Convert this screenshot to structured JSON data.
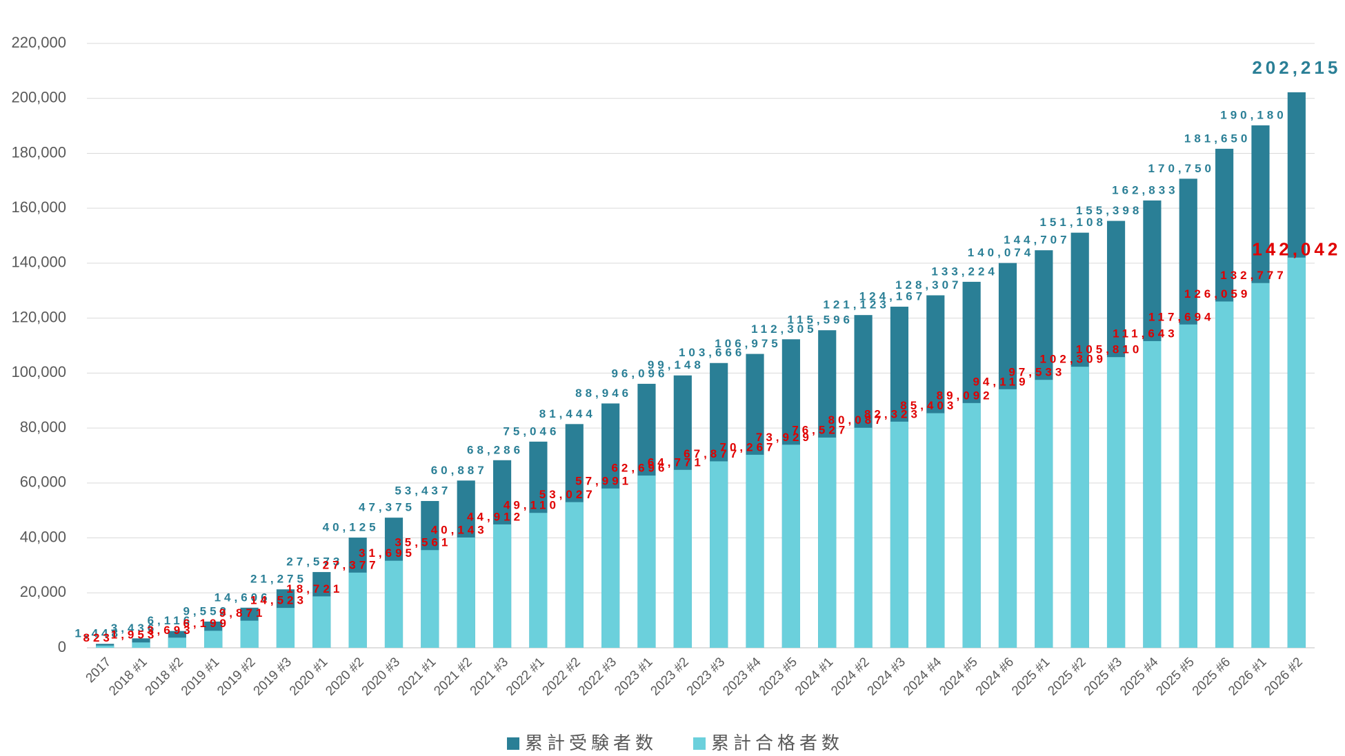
{
  "chart_data": {
    "type": "bar",
    "overlay": true,
    "categories": [
      "2017",
      "2018 #1",
      "2018 #2",
      "2019 #1",
      "2019 #2",
      "2019 #3",
      "2020 #1",
      "2020 #2",
      "2020 #3",
      "2021 #1",
      "2021 #2",
      "2021 #3",
      "2022 #1",
      "2022 #2",
      "2022 #3",
      "2023 #1",
      "2023 #2",
      "2023 #3",
      "2023 #4",
      "2023 #5",
      "2024 #1",
      "2024 #2",
      "2024 #3",
      "2024 #4",
      "2024 #5",
      "2024 #6",
      "2025 #1",
      "2025 #2",
      "2025 #3",
      "2025 #4",
      "2025 #5",
      "2025 #6",
      "2026 #1",
      "2026 #2"
    ],
    "series": [
      {
        "name": "累計受験者数",
        "color": "#2a7f96",
        "label_color": "#2a7f96",
        "values": [
          1448,
          3436,
          6116,
          9552,
          14606,
          21275,
          27573,
          40125,
          47375,
          53437,
          60887,
          68286,
          75046,
          81444,
          88946,
          96096,
          99148,
          103666,
          106975,
          112305,
          115596,
          121123,
          124167,
          128307,
          133224,
          140074,
          144707,
          151108,
          155398,
          162833,
          170750,
          181650,
          190180,
          202215
        ],
        "value_labels": [
          "1,448",
          "3,436",
          "6,116",
          "9,552",
          "14,606",
          "21,275",
          "27,573",
          "40,125",
          "47,375",
          "53,437",
          "60,887",
          "68,286",
          "75,046",
          "81,444",
          "88,946",
          "96,096",
          "99,148",
          "103,666",
          "106,975",
          "112,305",
          "115,596",
          "121,123",
          "124,167",
          "128,307",
          "133,224",
          "140,074",
          "144,707",
          "151,108",
          "155,398",
          "162,833",
          "170,750",
          "181,650",
          "190,180",
          "202,215"
        ]
      },
      {
        "name": "累計合格者数",
        "color": "#6bd0dc",
        "label_color": "#e00000",
        "values": [
          823,
          1953,
          3693,
          6199,
          9871,
          14523,
          18721,
          27377,
          31695,
          35561,
          40143,
          44912,
          49110,
          53027,
          57991,
          62696,
          64771,
          67877,
          70267,
          73929,
          76527,
          80087,
          82323,
          85403,
          89092,
          94119,
          97533,
          102309,
          105810,
          111643,
          117694,
          126059,
          132777,
          142042
        ],
        "value_labels": [
          "823",
          "1,953",
          "3,693",
          "6,199",
          "9,871",
          "14,523",
          "18,721",
          "27,377",
          "31,695",
          "35,561",
          "40,143",
          "44,912",
          "49,110",
          "53,027",
          "57,991",
          "62,696",
          "64,771",
          "67,877",
          "70,267",
          "73,929",
          "76,527",
          "80,087",
          "82,323",
          "85,403",
          "89,092",
          "94,119",
          "97,533",
          "102,309",
          "105,810",
          "111,643",
          "117,694",
          "126,059",
          "132,777",
          "142,042"
        ]
      }
    ],
    "ylim": [
      0,
      220000
    ],
    "yticks": [
      0,
      {
        "value": 20000,
        "label": "20,000"
      },
      {
        "value": 40000,
        "label": "40,000"
      },
      {
        "value": 60000,
        "label": "60,000"
      },
      {
        "value": 80000,
        "label": "80,000"
      },
      {
        "value": 100000,
        "label": "100,000"
      },
      {
        "value": 120000,
        "label": "120,000"
      },
      {
        "value": 140000,
        "label": "140,000"
      },
      {
        "value": 160000,
        "label": "160,000"
      },
      {
        "value": 180000,
        "label": "180,000"
      },
      {
        "value": 200000,
        "label": "200,000"
      },
      {
        "value": 220000,
        "label": "220,000"
      }
    ],
    "grid": true,
    "legend": "bottom"
  }
}
